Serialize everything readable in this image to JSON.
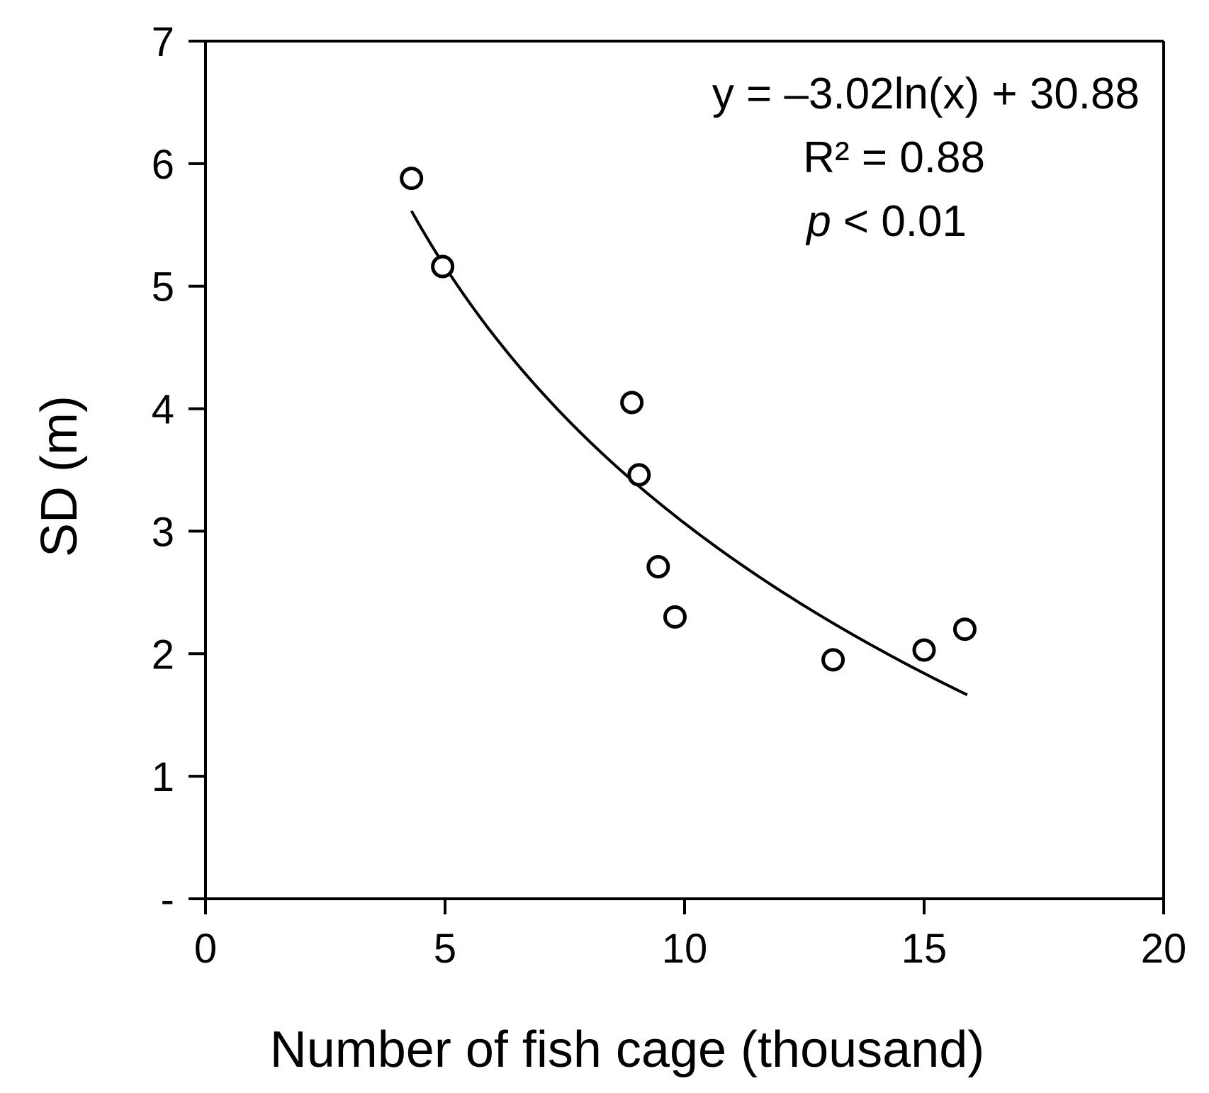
{
  "chart_data": {
    "type": "scatter",
    "xlabel": "Number of fish cage (thousand)",
    "ylabel": "SD (m)",
    "xlim": [
      0,
      20
    ],
    "ylim": [
      0,
      7
    ],
    "x_ticks": [
      0,
      5,
      10,
      15,
      20
    ],
    "x_tick_labels": [
      "0",
      "5",
      "10",
      "15",
      "20"
    ],
    "y_ticks": [
      0,
      1,
      2,
      3,
      4,
      5,
      6,
      7
    ],
    "y_tick_labels": [
      "-",
      "1",
      "2",
      "3",
      "4",
      "5",
      "6",
      "7"
    ],
    "grid": false,
    "series": [
      {
        "marker": "open-circle",
        "points": [
          {
            "x": 4.3,
            "y": 5.88
          },
          {
            "x": 4.95,
            "y": 5.16
          },
          {
            "x": 8.9,
            "y": 4.05
          },
          {
            "x": 9.05,
            "y": 3.46
          },
          {
            "x": 9.45,
            "y": 2.71
          },
          {
            "x": 9.8,
            "y": 2.3
          },
          {
            "x": 13.1,
            "y": 1.95
          },
          {
            "x": 15.0,
            "y": 2.03
          },
          {
            "x": 15.85,
            "y": 2.2
          }
        ]
      }
    ],
    "fit": {
      "type": "logarithmic",
      "a": -3.02,
      "b": 30.88,
      "x_unit_multiplier": 1000,
      "x_range": [
        4.3,
        15.9
      ],
      "color": "#000000"
    },
    "annotations": {
      "equation": "y = –3.02ln(x) + 30.88",
      "r_squared": "R² = 0.88",
      "p_italic": "p",
      "p_rest": " < 0.01"
    }
  }
}
